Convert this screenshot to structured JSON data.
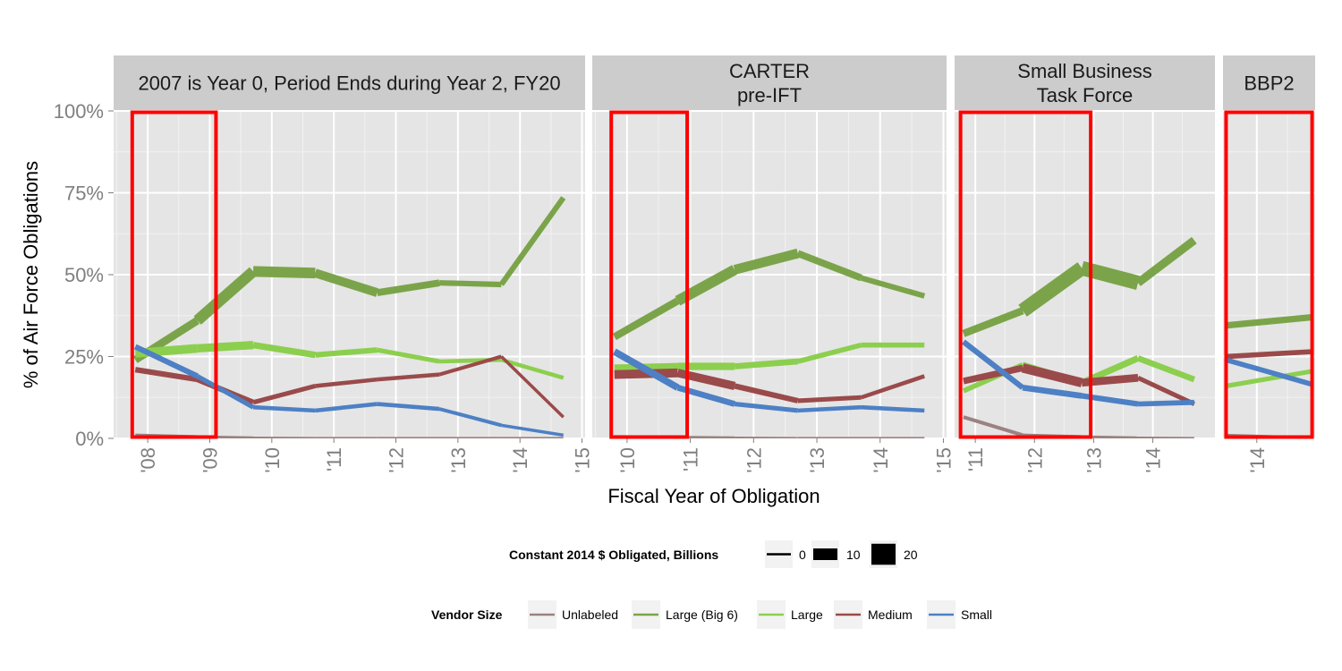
{
  "chart_data": {
    "type": "line",
    "ylabel": "% of  Air Force  Obligations",
    "xlabel": "Fiscal Year of Obligation",
    "y_ticks": [
      "0%",
      "25%",
      "50%",
      "75%",
      "100%"
    ],
    "ylim": [
      0,
      1
    ],
    "grid": true,
    "legend_position": "bottom",
    "panels": [
      {
        "label": "2007 is Year 0, Period Ends during Year 2, FY20",
        "xlim": [
          2007.45,
          2015.05
        ],
        "x_ticks": [
          "'08",
          "'09",
          "'10",
          "'11",
          "'12",
          "'13",
          "'14",
          "'15"
        ],
        "x_tick_values": [
          2008,
          2009,
          2010,
          2011,
          2012,
          2013,
          2014,
          2015
        ],
        "highlight_range": [
          2007.75,
          2009.1
        ],
        "x": [
          2007.8,
          2008.8,
          2009.7,
          2010.7,
          2011.7,
          2012.7,
          2013.7,
          2014.7
        ],
        "series": [
          {
            "name": "Unlabeled",
            "values": [
              0.01,
              0.005,
              0.002,
              0.001,
              0.001,
              0.001,
              0.001,
              0.001
            ],
            "size": [
              1,
              1,
              0,
              0,
              0,
              0,
              0,
              0
            ]
          },
          {
            "name": "Large (Big 6)",
            "values": [
              0.24,
              0.36,
              0.51,
              0.505,
              0.445,
              0.475,
              0.47,
              0.735
            ],
            "size": [
              3,
              9,
              10,
              8,
              6,
              4,
              3,
              4
            ]
          },
          {
            "name": "Large",
            "values": [
              0.26,
              0.275,
              0.285,
              0.255,
              0.27,
              0.235,
              0.24,
              0.185
            ],
            "size": [
              6,
              8,
              5,
              4,
              3,
              2,
              2,
              2
            ]
          },
          {
            "name": "Medium",
            "values": [
              0.21,
              0.18,
              0.11,
              0.16,
              0.18,
              0.195,
              0.25,
              0.065
            ],
            "size": [
              3,
              4,
              3,
              2,
              2,
              2,
              1,
              1
            ]
          },
          {
            "name": "Small",
            "values": [
              0.28,
              0.19,
              0.095,
              0.085,
              0.105,
              0.09,
              0.04,
              0.01
            ],
            "size": [
              4,
              3,
              2,
              2,
              2,
              2,
              1,
              1
            ]
          }
        ]
      },
      {
        "label": "CARTER\npre-IFT",
        "xlim": [
          2009.45,
          2015.05
        ],
        "x_ticks": [
          "'10",
          "'11",
          "'12",
          "'13",
          "'14",
          "'15"
        ],
        "x_tick_values": [
          2010,
          2011,
          2012,
          2013,
          2014,
          2015
        ],
        "highlight_range": [
          2009.75,
          2010.95
        ],
        "x": [
          2009.8,
          2010.8,
          2011.7,
          2012.7,
          2013.7,
          2014.7
        ],
        "series": [
          {
            "name": "Unlabeled",
            "values": [
              0.005,
              0.004,
              0.002,
              0.001,
              0.001,
              0.001
            ],
            "size": [
              1,
              1,
              0,
              0,
              0,
              0
            ]
          },
          {
            "name": "Large (Big 6)",
            "values": [
              0.31,
              0.42,
              0.515,
              0.565,
              0.49,
              0.435
            ],
            "size": [
              3,
              8,
              10,
              6,
              4,
              3
            ]
          },
          {
            "name": "Large",
            "values": [
              0.215,
              0.22,
              0.22,
              0.235,
              0.285,
              0.285
            ],
            "size": [
              4,
              6,
              5,
              3,
              3,
              3
            ]
          },
          {
            "name": "Medium",
            "values": [
              0.195,
              0.2,
              0.16,
              0.115,
              0.125,
              0.19
            ],
            "size": [
              5,
              9,
              4,
              3,
              2,
              2
            ]
          },
          {
            "name": "Small",
            "values": [
              0.265,
              0.155,
              0.105,
              0.085,
              0.095,
              0.085
            ],
            "size": [
              5,
              5,
              3,
              2,
              2,
              2
            ]
          }
        ]
      },
      {
        "label": "Small Business\nTask Force",
        "xlim": [
          2010.65,
          2015.05
        ],
        "x_ticks": [
          "'11",
          "'12",
          "'13",
          "'14"
        ],
        "x_tick_values": [
          2011,
          2012,
          2013,
          2014
        ],
        "highlight_range": [
          2010.75,
          2012.95
        ],
        "x": [
          2010.8,
          2011.8,
          2012.8,
          2013.75,
          2014.7
        ],
        "series": [
          {
            "name": "Unlabeled",
            "values": [
              0.065,
              0.01,
              0.005,
              0.002,
              0.001
            ],
            "size": [
              2,
              1,
              1,
              0,
              0
            ]
          },
          {
            "name": "Large (Big 6)",
            "values": [
              0.32,
              0.39,
              0.52,
              0.475,
              0.605
            ],
            "size": [
              3,
              8,
              18,
              8,
              5
            ]
          },
          {
            "name": "Large",
            "values": [
              0.145,
              0.225,
              0.17,
              0.245,
              0.18
            ],
            "size": [
              3,
              3,
              5,
              4,
              4
            ]
          },
          {
            "name": "Medium",
            "values": [
              0.175,
              0.215,
              0.17,
              0.185,
              0.105
            ],
            "size": [
              3,
              6,
              9,
              3,
              2
            ]
          },
          {
            "name": "Small",
            "values": [
              0.295,
              0.155,
              0.13,
              0.105,
              0.11
            ],
            "size": [
              3,
              4,
              4,
              3,
              3
            ]
          }
        ]
      },
      {
        "label": "BBP2",
        "xlim": [
          2013.45,
          2014.95
        ],
        "x_ticks": [
          "'14"
        ],
        "x_tick_values": [
          2014
        ],
        "highlight_range": [
          2013.5,
          2014.9
        ],
        "x": [
          2013.5,
          2014.9
        ],
        "series": [
          {
            "name": "Unlabeled",
            "values": [
              0.01,
              0.002
            ],
            "size": [
              1,
              0
            ]
          },
          {
            "name": "Large (Big 6)",
            "values": [
              0.345,
              0.37
            ],
            "size": [
              4,
              5
            ]
          },
          {
            "name": "Large",
            "values": [
              0.16,
              0.205
            ],
            "size": [
              2,
              3
            ]
          },
          {
            "name": "Medium",
            "values": [
              0.25,
              0.265
            ],
            "size": [
              3,
              3
            ]
          },
          {
            "name": "Small",
            "values": [
              0.24,
              0.165
            ],
            "size": [
              3,
              3
            ]
          }
        ]
      }
    ],
    "legend_size": {
      "title": "Constant 2014 $ Obligated, Billions",
      "entries": [
        {
          "label": "0",
          "size": 0
        },
        {
          "label": "10",
          "size": 10
        },
        {
          "label": "20",
          "size": 20
        }
      ]
    },
    "legend_color": {
      "title": "Vendor Size",
      "entries": [
        {
          "label": "Unlabeled",
          "color": "#9b8282"
        },
        {
          "label": "Large (Big 6)",
          "color": "#7ba44a"
        },
        {
          "label": "Large",
          "color": "#8ccf4e"
        },
        {
          "label": "Medium",
          "color": "#9a4a4a"
        },
        {
          "label": "Small",
          "color": "#4d80c4"
        }
      ]
    }
  }
}
